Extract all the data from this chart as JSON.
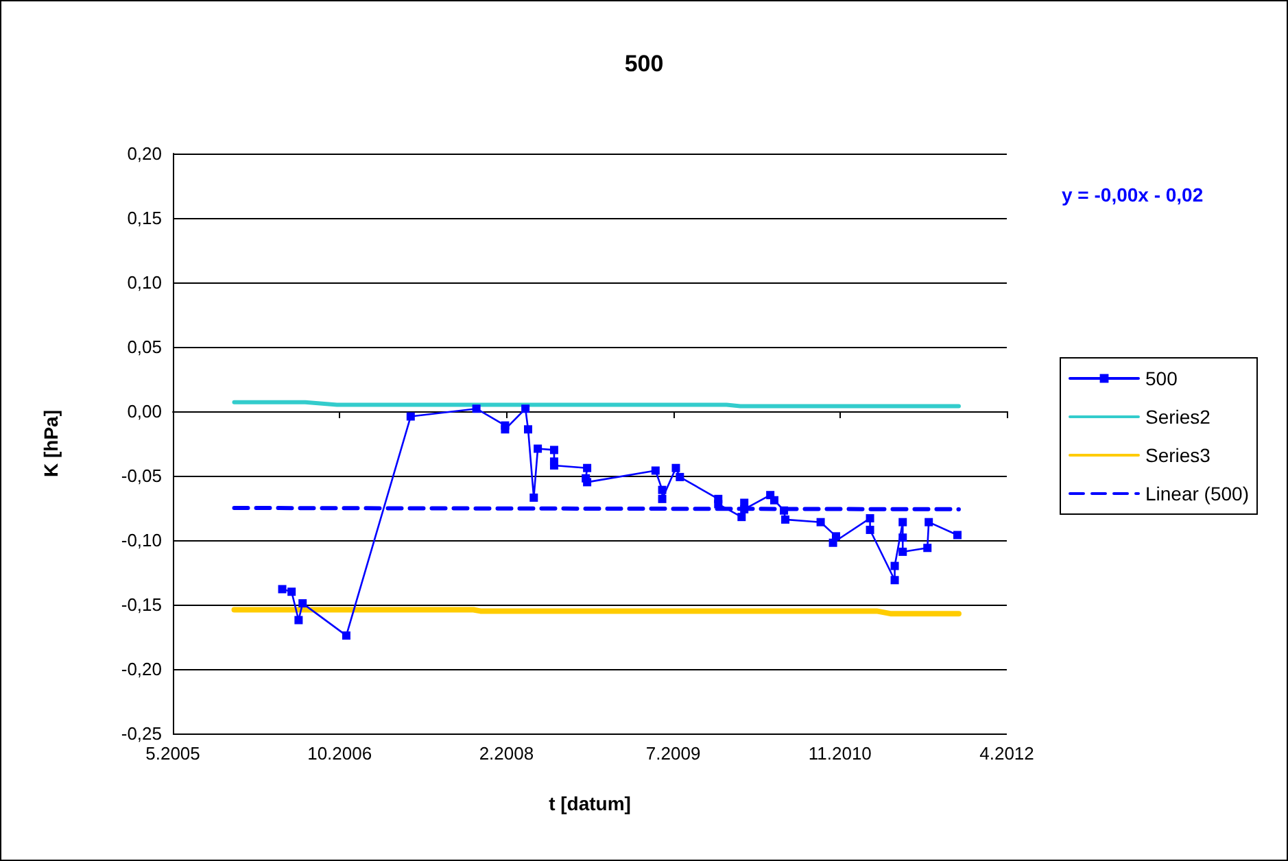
{
  "chart_data": {
    "type": "line",
    "title": "500",
    "xlabel": "t [datum]",
    "ylabel": "K [hPa]",
    "annotations": [
      "y = -0,00x - 0,02"
    ],
    "xlim": [
      "2005-05-28",
      "2012-04-01"
    ],
    "xticks": [
      {
        "value": "2005-05-28",
        "label": "5.2005"
      },
      {
        "value": "2006-10-10",
        "label": "10.2006"
      },
      {
        "value": "2008-02-22",
        "label": "2.2008"
      },
      {
        "value": "2009-07-06",
        "label": "7.2009"
      },
      {
        "value": "2010-11-18",
        "label": "11.2010"
      },
      {
        "value": "2012-04-01",
        "label": "4.2012"
      }
    ],
    "ylim": [
      -0.25,
      0.2
    ],
    "yticks": [
      {
        "value": -0.25,
        "label": "-0,25"
      },
      {
        "value": -0.2,
        "label": "-0,20"
      },
      {
        "value": -0.15,
        "label": "-0,15"
      },
      {
        "value": -0.1,
        "label": "-0,10"
      },
      {
        "value": -0.05,
        "label": "-0,05"
      },
      {
        "value": 0,
        "label": "0,00"
      },
      {
        "value": 0.05,
        "label": "0,05"
      },
      {
        "value": 0.1,
        "label": "0,10"
      },
      {
        "value": 0.15,
        "label": "0,15"
      },
      {
        "value": 0.2,
        "label": "0,20"
      }
    ],
    "grid": "y",
    "legend": "right",
    "series": [
      {
        "name": "500",
        "color": "#0000ff",
        "marker": "square",
        "line_style": "solid",
        "x": [
          "2006-04-21",
          "2006-05-19",
          "2006-06-09",
          "2006-06-21",
          "2006-10-30",
          "2007-05-11",
          "2007-11-24",
          "2008-02-18",
          "2008-02-18",
          "2008-04-19",
          "2008-04-27",
          "2008-05-14",
          "2008-05-26",
          "2008-07-14",
          "2008-07-14",
          "2008-07-14",
          "2008-10-21",
          "2008-10-17",
          "2008-10-21",
          "2009-05-14",
          "2009-06-03",
          "2009-06-03",
          "2009-07-14",
          "2009-07-26",
          "2009-11-18",
          "2009-11-18",
          "2010-01-27",
          "2010-02-04",
          "2010-02-04",
          "2010-04-23",
          "2010-05-05",
          "2010-06-03",
          "2010-06-07",
          "2010-09-21",
          "2010-11-06",
          "2010-10-28",
          "2011-02-16",
          "2011-02-16",
          "2011-05-01",
          "2011-05-01",
          "2011-05-25",
          "2011-05-25",
          "2011-05-25",
          "2011-08-07",
          "2011-08-11",
          "2011-11-05"
        ],
        "values": [
          -0.138,
          -0.14,
          -0.162,
          -0.149,
          -0.174,
          -0.004,
          0.002,
          -0.011,
          -0.014,
          0.002,
          -0.014,
          -0.067,
          -0.029,
          -0.03,
          -0.039,
          -0.042,
          -0.044,
          -0.052,
          -0.055,
          -0.046,
          -0.061,
          -0.068,
          -0.044,
          -0.051,
          -0.068,
          -0.072,
          -0.082,
          -0.071,
          -0.076,
          -0.065,
          -0.069,
          -0.077,
          -0.084,
          -0.086,
          -0.097,
          -0.102,
          -0.083,
          -0.092,
          -0.131,
          -0.12,
          -0.086,
          -0.098,
          -0.109,
          -0.106,
          -0.086,
          -0.096
        ]
      },
      {
        "name": "Series2",
        "color": "#33cccc",
        "marker": "none",
        "line_style": "solid",
        "x": [
          "2005-11-28",
          "2006-06-29",
          "2006-10-02",
          "2009-12-13",
          "2010-01-23",
          "2011-11-09"
        ],
        "values": [
          0.007,
          0.007,
          0.005,
          0.005,
          0.004,
          0.004
        ]
      },
      {
        "name": "Series3",
        "color": "#ffcc00",
        "marker": "none",
        "line_style": "solid",
        "x": [
          "2005-11-28",
          "2007-11-15",
          "2007-12-06",
          "2011-03-08",
          "2011-04-18",
          "2011-11-09"
        ],
        "values": [
          -0.154,
          -0.154,
          -0.155,
          -0.155,
          -0.157,
          -0.157
        ]
      },
      {
        "name": "Linear (500)",
        "color": "#0000ff",
        "marker": "none",
        "line_style": "dashed",
        "x": [
          "2005-11-28",
          "2011-11-09"
        ],
        "values": [
          -0.075,
          -0.076
        ]
      }
    ]
  }
}
